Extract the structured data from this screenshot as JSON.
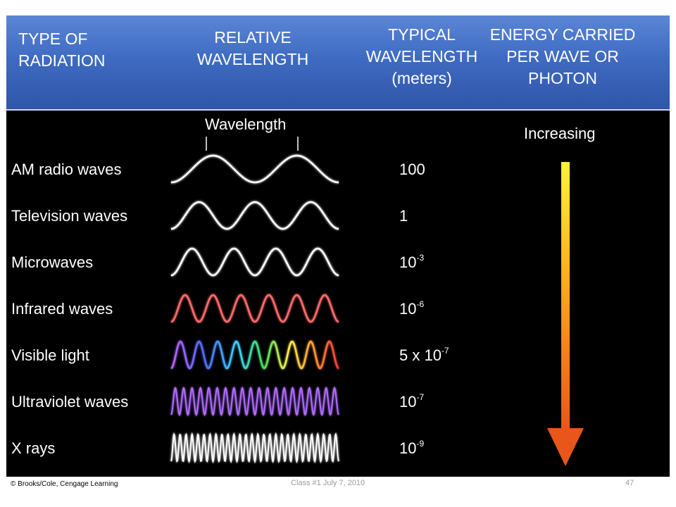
{
  "header": {
    "type_lines": [
      "TYPE OF",
      "RADIATION"
    ],
    "relative_lines": [
      "RELATIVE",
      "WAVELENGTH"
    ],
    "typical_lines": [
      "TYPICAL",
      "WAVELENGTH",
      "(meters)"
    ],
    "energy_lines": [
      "ENERGY CARRIED",
      "PER WAVE OR",
      "PHOTON"
    ]
  },
  "wavelength_label": "Wavelength",
  "increasing_label": "Increasing",
  "radiations": [
    {
      "name": "AM radio waves",
      "base": "100",
      "exp": "",
      "cycles": 2,
      "color": "#ffffff"
    },
    {
      "name": "Television waves",
      "base": "1",
      "exp": "",
      "cycles": 3,
      "color": "#ffffff"
    },
    {
      "name": "Microwaves",
      "base": "10",
      "exp": "-3",
      "cycles": 4,
      "color": "#ffffff"
    },
    {
      "name": "Infrared waves",
      "base": "10",
      "exp": "-6",
      "cycles": 6,
      "color": "#ff6b6b"
    },
    {
      "name": "Visible light",
      "base": "5 x 10",
      "exp": "-7",
      "cycles": 9,
      "color": "rainbow"
    },
    {
      "name": "Ultraviolet waves",
      "base": "10",
      "exp": "-7",
      "cycles": 20,
      "color": "#b06cff"
    },
    {
      "name": "X rays",
      "base": "10",
      "exp": "-9",
      "cycles": 28,
      "color": "#ffffff"
    }
  ],
  "footer": {
    "credit": "© Brooks/Cole, Cengage Learning",
    "center": "Class #1 July 7, 2010",
    "page": "47"
  }
}
